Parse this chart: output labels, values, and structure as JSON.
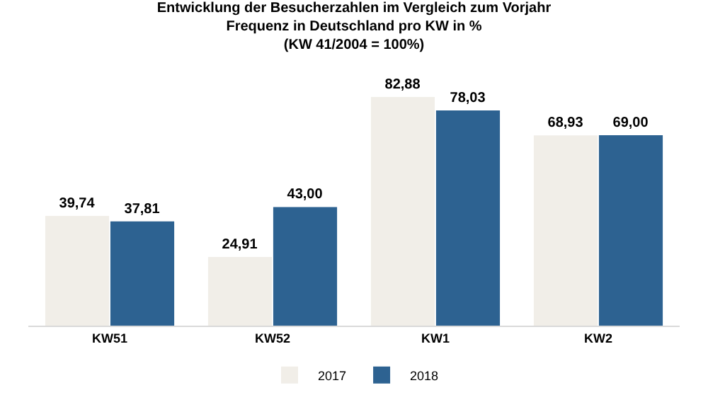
{
  "chart_data": {
    "type": "bar",
    "title": "Entwicklung der Besucherzahlen im Vergleich zum Vorjahr\nFrequenz in Deutschland pro KW in %\n(KW 41/2004 = 100%)",
    "categories": [
      "KW51",
      "KW52",
      "KW1",
      "KW2"
    ],
    "series": [
      {
        "name": "2017",
        "color": "#f1eee8",
        "values": [
          39.74,
          24.91,
          82.88,
          68.93
        ],
        "value_labels": [
          "39,74",
          "24,91",
          "82,88",
          "68,93"
        ]
      },
      {
        "name": "2018",
        "color": "#2d6291",
        "values": [
          37.81,
          43.0,
          78.03,
          69.0
        ],
        "value_labels": [
          "37,81",
          "43,00",
          "78,03",
          "69,00"
        ]
      }
    ],
    "legend": "bottom"
  }
}
